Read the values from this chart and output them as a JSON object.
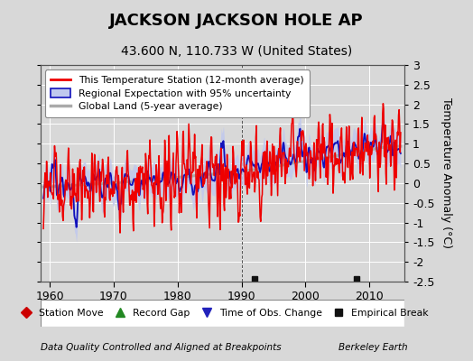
{
  "title": "JACKSON JACKSON HOLE AP",
  "subtitle": "43.600 N, 110.733 W (United States)",
  "ylabel": "Temperature Anomaly (°C)",
  "xlabel_left": "Data Quality Controlled and Aligned at Breakpoints",
  "xlabel_right": "Berkeley Earth",
  "ylim": [
    -2.5,
    3.0
  ],
  "xlim": [
    1958.5,
    2015.5
  ],
  "yticks": [
    -2.5,
    -2,
    -1.5,
    -1,
    -0.5,
    0,
    0.5,
    1,
    1.5,
    2,
    2.5,
    3
  ],
  "xticks": [
    1960,
    1970,
    1980,
    1990,
    2000,
    2010
  ],
  "bg_color": "#d8d8d8",
  "plot_bg_color": "#d8d8d8",
  "red_color": "#ee0000",
  "blue_color": "#1111bb",
  "blue_fill_color": "#c0c8ee",
  "gray_color": "#aaaaaa",
  "empirical_break_years": [
    1992,
    2008
  ],
  "title_fontsize": 13,
  "subtitle_fontsize": 10,
  "tick_fontsize": 9,
  "label_fontsize": 9
}
